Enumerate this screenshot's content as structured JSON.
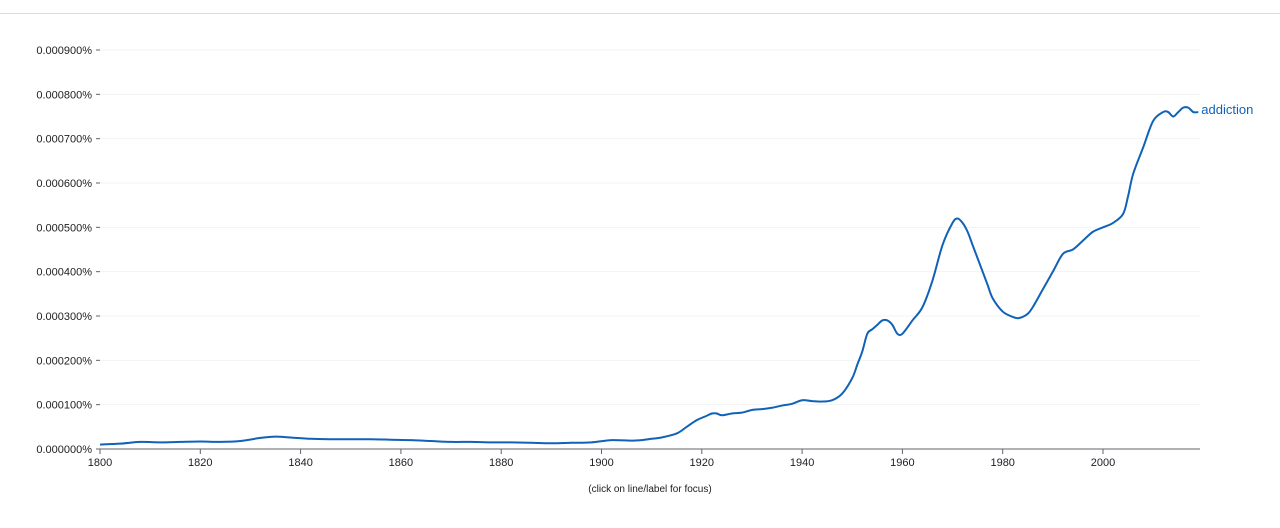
{
  "chart_data": {
    "type": "line",
    "title": "",
    "xlabel": "",
    "ylabel": "",
    "xlim": [
      1800,
      2019
    ],
    "ylim": [
      0,
      9e-06
    ],
    "x_ticks": [
      "1800",
      "1820",
      "1840",
      "1860",
      "1880",
      "1900",
      "1920",
      "1940",
      "1960",
      "1980",
      "2000"
    ],
    "x_tick_values": [
      1800,
      1820,
      1840,
      1860,
      1880,
      1900,
      1920,
      1940,
      1960,
      1980,
      2000
    ],
    "y_ticks": [
      "0.000000%",
      "0.000100%",
      "0.000200%",
      "0.000300%",
      "0.000400%",
      "0.000500%",
      "0.000600%",
      "0.000700%",
      "0.000800%",
      "0.000900%"
    ],
    "y_tick_values": [
      0,
      1e-06,
      2e-06,
      3e-06,
      4e-06,
      5e-06,
      6e-06,
      7e-06,
      8e-06,
      9e-06
    ],
    "grid": true,
    "series": [
      {
        "name": "addiction",
        "color": "#0f62b8",
        "x": [
          1800,
          1804,
          1808,
          1812,
          1816,
          1820,
          1824,
          1828,
          1832,
          1835,
          1838,
          1842,
          1846,
          1850,
          1854,
          1858,
          1862,
          1866,
          1870,
          1874,
          1878,
          1882,
          1886,
          1890,
          1894,
          1898,
          1902,
          1906,
          1908,
          1910,
          1912,
          1915,
          1917,
          1919,
          1921,
          1922,
          1923,
          1924,
          1926,
          1928,
          1930,
          1932,
          1934,
          1936,
          1938,
          1940,
          1942,
          1944,
          1946,
          1948,
          1950,
          1951,
          1952,
          1953,
          1954,
          1955,
          1956,
          1957,
          1958,
          1959,
          1960,
          1962,
          1964,
          1966,
          1968,
          1970,
          1971,
          1972,
          1973,
          1974,
          1975,
          1976,
          1977,
          1978,
          1980,
          1982,
          1983,
          1984,
          1985,
          1986,
          1988,
          1990,
          1992,
          1994,
          1996,
          1998,
          2000,
          2002,
          2004,
          2005,
          2006,
          2008,
          2010,
          2012,
          2013,
          2014,
          2015,
          2016,
          2017,
          2018,
          2019
        ],
        "y": [
          1e-07,
          1.2e-07,
          1.6e-07,
          1.5e-07,
          1.6e-07,
          1.7e-07,
          1.6e-07,
          1.8e-07,
          2.5e-07,
          2.8e-07,
          2.6e-07,
          2.3e-07,
          2.2e-07,
          2.2e-07,
          2.2e-07,
          2.1e-07,
          2e-07,
          1.8e-07,
          1.6e-07,
          1.6e-07,
          1.5e-07,
          1.5e-07,
          1.4e-07,
          1.3e-07,
          1.4e-07,
          1.5e-07,
          2e-07,
          1.9e-07,
          2e-07,
          2.3e-07,
          2.6e-07,
          3.5e-07,
          5e-07,
          6.5e-07,
          7.5e-07,
          8e-07,
          8e-07,
          7.6e-07,
          8e-07,
          8.2e-07,
          8.8e-07,
          9e-07,
          9.3e-07,
          9.8e-07,
          1.02e-06,
          1.1e-06,
          1.08e-06,
          1.07e-06,
          1.1e-06,
          1.25e-06,
          1.6e-06,
          1.9e-06,
          2.2e-06,
          2.6e-06,
          2.7e-06,
          2.8e-06,
          2.9e-06,
          2.9e-06,
          2.8e-06,
          2.6e-06,
          2.6e-06,
          2.9e-06,
          3.2e-06,
          3.8e-06,
          4.6e-06,
          5.1e-06,
          5.2e-06,
          5.1e-06,
          4.9e-06,
          4.6e-06,
          4.3e-06,
          4e-06,
          3.7e-06,
          3.4e-06,
          3.1e-06,
          2.98e-06,
          2.95e-06,
          2.98e-06,
          3.05e-06,
          3.2e-06,
          3.6e-06,
          4e-06,
          4.4e-06,
          4.5e-06,
          4.7e-06,
          4.9e-06,
          5e-06,
          5.1e-06,
          5.3e-06,
          5.7e-06,
          6.2e-06,
          6.8e-06,
          7.4e-06,
          7.6e-06,
          7.6e-06,
          7.5e-06,
          7.6e-06,
          7.7e-06,
          7.7e-06,
          7.6e-06,
          7.6e-06
        ]
      }
    ],
    "annotation": "(click on line/label for focus)"
  }
}
